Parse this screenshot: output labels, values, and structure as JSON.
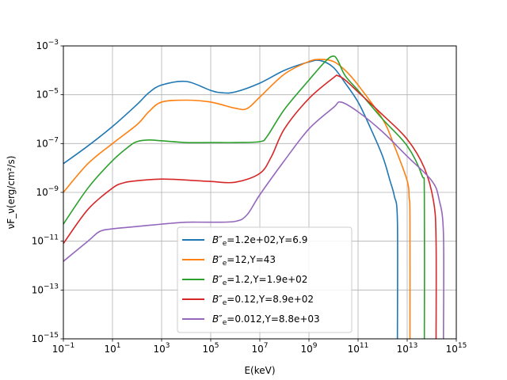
{
  "chart_data": {
    "type": "line",
    "xlabel": "E(keV)",
    "ylabel": "νF_ν(erg/cm²/s)",
    "xscale": "log",
    "yscale": "log",
    "xlim": [
      0.1,
      1000000000000000.0
    ],
    "ylim": [
      1e-15,
      0.001
    ],
    "grid": true,
    "legend_position": "lower center",
    "x_ticks": [
      {
        "value": 0.1,
        "base": "10",
        "exp": "−1"
      },
      {
        "value": 10,
        "base": "10",
        "exp": "1"
      },
      {
        "value": 1000,
        "base": "10",
        "exp": "3"
      },
      {
        "value": 100000,
        "base": "10",
        "exp": "5"
      },
      {
        "value": 10000000.0,
        "base": "10",
        "exp": "7"
      },
      {
        "value": 1000000000.0,
        "base": "10",
        "exp": "9"
      },
      {
        "value": 100000000000.0,
        "base": "10",
        "exp": "11"
      },
      {
        "value": 10000000000000.0,
        "base": "10",
        "exp": "13"
      },
      {
        "value": 1000000000000000.0,
        "base": "10",
        "exp": "15"
      }
    ],
    "y_ticks": [
      {
        "value": 1e-15,
        "base": "10",
        "exp": "−15"
      },
      {
        "value": 1e-13,
        "base": "10",
        "exp": "−13"
      },
      {
        "value": 1e-11,
        "base": "10",
        "exp": "−11"
      },
      {
        "value": 1e-09,
        "base": "10",
        "exp": "−9"
      },
      {
        "value": 1e-07,
        "base": "10",
        "exp": "−7"
      },
      {
        "value": 1e-05,
        "base": "10",
        "exp": "−5"
      },
      {
        "value": 0.001,
        "base": "10",
        "exp": "−3"
      }
    ],
    "series": [
      {
        "name": "B''e=1.2e+02,Y=6.9",
        "label": {
          "sym": "B",
          "prime": "″",
          "sub": "e",
          "rest": "=1.2e+02,Y=6.9"
        },
        "color": "#1f77b4",
        "x": [
          0.1,
          1,
          10,
          100,
          300,
          1000,
          10000,
          100000,
          300000,
          1000000,
          10000000,
          100000000,
          1000000000,
          3000000000,
          10000000000,
          30000000000,
          100000000000,
          300000000000,
          1000000000000,
          2000000000000,
          3000000000000,
          4000000000000,
          4000000000000
        ],
        "y": [
          1.5e-08,
          8e-08,
          5e-07,
          4e-06,
          1.2e-05,
          2.5e-05,
          3.5e-05,
          1.5e-05,
          1.2e-05,
          1.3e-05,
          3e-05,
          0.0001,
          0.00022,
          0.00025,
          0.00013,
          3e-05,
          5e-06,
          5e-07,
          3e-08,
          3e-09,
          7e-10,
          7e-11,
          1e-15
        ]
      },
      {
        "name": "B''e=12,Y=43",
        "label": {
          "sym": "B",
          "prime": "″",
          "sub": "e",
          "rest": "=12,Y=43"
        },
        "color": "#ff7f0e",
        "x": [
          0.1,
          1,
          10,
          100,
          300,
          1000,
          10000,
          100000,
          1000000,
          3000000,
          10000000,
          100000000,
          1000000000,
          3000000000,
          10000000000,
          30000000000,
          100000000000,
          1000000000000,
          3000000000000,
          10000000000000,
          12000000000000,
          13000000000000,
          13000000000000
        ],
        "y": [
          1e-09,
          1.5e-08,
          1e-07,
          6e-07,
          2e-06,
          5e-06,
          6e-06,
          5e-06,
          2.8e-06,
          2.7e-06,
          8e-06,
          7e-05,
          0.00023,
          0.00028,
          0.00023,
          0.0001,
          2.5e-05,
          1e-06,
          8e-08,
          3e-09,
          6e-10,
          1e-10,
          1e-15
        ]
      },
      {
        "name": "B''e=1.2,Y=1.9e+02",
        "label": {
          "sym": "B",
          "prime": "″",
          "sub": "e",
          "rest": "=1.2,Y=1.9e+02"
        },
        "color": "#2ca02c",
        "x": [
          0.1,
          1,
          10,
          50,
          100,
          300,
          1000,
          10000,
          100000,
          1000000,
          10000000,
          20000000,
          100000000,
          1000000000,
          5000000000,
          10000000000,
          15000000000,
          30000000000,
          100000000000,
          1000000000000,
          10000000000000,
          40000000000000,
          50000000000000,
          50000000000000
        ],
        "y": [
          5e-11,
          1.5e-09,
          2e-08,
          8e-08,
          1.2e-07,
          1.4e-07,
          1.3e-07,
          1.1e-07,
          1.1e-07,
          1.1e-07,
          1.2e-07,
          2e-07,
          2.5e-06,
          4e-05,
          0.00025,
          0.00038,
          0.00025,
          6e-05,
          1.5e-05,
          1e-06,
          8e-08,
          5e-09,
          8e-10,
          1e-15
        ]
      },
      {
        "name": "B''e=0.12,Y=8.9e+02",
        "label": {
          "sym": "B",
          "prime": "″",
          "sub": "e",
          "rest": "=0.12,Y=8.9e+02"
        },
        "color": "#d62728",
        "x": [
          0.1,
          1,
          10,
          30,
          100,
          1000,
          10000,
          100000,
          1000000,
          10000000,
          30000000,
          100000000,
          1000000000,
          10000000000,
          15000000000,
          30000000000,
          100000000000,
          1000000000000,
          10000000000000,
          50000000000000,
          120000000000000,
          150000000000000,
          150000000000000
        ],
        "y": [
          8e-12,
          2e-10,
          1.5e-09,
          2.5e-09,
          3e-09,
          3.5e-09,
          3.2e-09,
          2.8e-09,
          2.6e-09,
          6e-09,
          3e-08,
          4e-07,
          7e-06,
          5e-05,
          6e-05,
          4e-05,
          1.3e-05,
          1.5e-06,
          1.5e-07,
          1e-08,
          4e-10,
          1e-11,
          1e-15
        ]
      },
      {
        "name": "B''e=0.012,Y=8.8e+03",
        "label": {
          "sym": "B",
          "prime": "″",
          "sub": "e",
          "rest": "=0.012,Y=8.8e+03"
        },
        "color": "#9467bd",
        "x": [
          0.1,
          1,
          3,
          10,
          100,
          1000,
          10000,
          100000,
          1000000,
          3000000,
          10000000,
          100000000,
          1000000000,
          10000000000,
          20000000000,
          100000000000,
          1000000000000,
          10000000000000,
          100000000000000,
          200000000000000,
          300000000000000,
          300000000000000
        ],
        "y": [
          1.5e-12,
          1e-11,
          2.5e-11,
          3.2e-11,
          4e-11,
          5e-11,
          6e-11,
          6e-11,
          6.5e-11,
          1.2e-10,
          8e-10,
          2e-08,
          4e-07,
          3e-06,
          5e-06,
          2e-06,
          3e-07,
          3e-08,
          3e-09,
          5e-10,
          2e-11,
          1e-15
        ]
      }
    ]
  }
}
